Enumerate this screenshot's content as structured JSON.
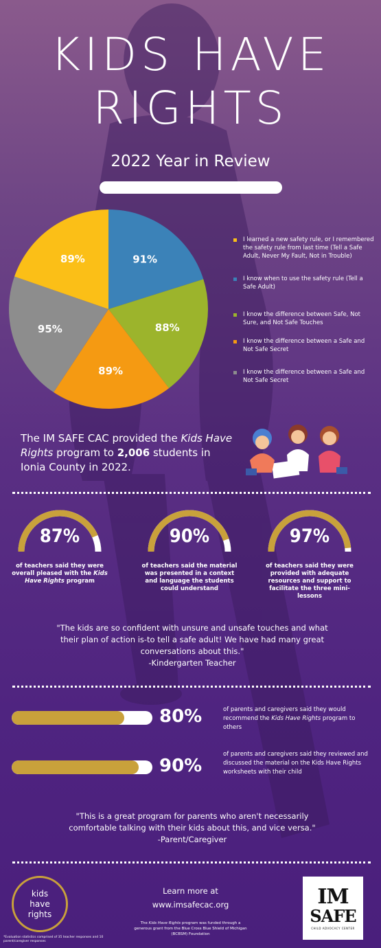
{
  "header": {
    "title_line1": "KIDS HAVE",
    "title_line2": "RIGHTS",
    "subtitle": "2022 Year in Review"
  },
  "pie": {
    "slices": [
      {
        "label": "91%",
        "value": 91,
        "color": "#3b82b8"
      },
      {
        "label": "88%",
        "value": 88,
        "color": "#9cb42c"
      },
      {
        "label": "89%",
        "value": 89,
        "color": "#f59a12"
      },
      {
        "label": "95%",
        "value": 95,
        "color": "#8d8d8d"
      },
      {
        "label": "89%",
        "value": 89,
        "color": "#fbbf17"
      }
    ]
  },
  "legend": [
    {
      "text": "I learned a new safety rule, or I remembered the safety rule from last time (Tell a Safe Adult, Never My Fault, Not in Trouble)",
      "color": "#fbbf17"
    },
    {
      "text": "I know when to use the safety rule (Tell a Safe Adult)",
      "color": "#3b82b8"
    },
    {
      "text": "I know the difference between Safe, Not Sure, and Not Safe Touches",
      "color": "#9cb42c"
    },
    {
      "text": "I know the difference between a Safe and Not Safe Secret",
      "color": "#f59a12"
    },
    {
      "text": "I know the difference between a Safe and Not Safe Secret",
      "color": "#8d8d8d"
    }
  ],
  "intro": {
    "part1": "The IM SAFE CAC provided the ",
    "program": "Kids Have Rights",
    "part2": " program to ",
    "count": "2,006",
    "part3": " students in Ionia County in 2022."
  },
  "teacher_stats": [
    {
      "value": "87%",
      "fraction": 0.87,
      "text_before": "of teachers said they were overall pleased with the ",
      "text_em": "Kids Have Rights",
      "text_after": " program"
    },
    {
      "value": "90%",
      "fraction": 0.9,
      "text_before": "of teachers said the material was presented in a context and language the students could understand",
      "text_em": "",
      "text_after": ""
    },
    {
      "value": "97%",
      "fraction": 0.97,
      "text_before": "of teachers said they were provided with adequate resources and support to facilitate the three mini-lessons",
      "text_em": "",
      "text_after": ""
    }
  ],
  "quote1": {
    "text": "\"The kids are so confident with unsure and unsafe touches and what their plan of action is-to tell a safe adult! We have had many great conversations about this.\"",
    "attribution": "-Kindergarten Teacher"
  },
  "parent_stats": [
    {
      "value": "80%",
      "fraction": 0.8,
      "text_before": "of parents and caregivers said they would recommend the ",
      "text_em": "Kids Have Rights",
      "text_after": " program to others"
    },
    {
      "value": "90%",
      "fraction": 0.9,
      "text_before": "of parents and caregivers said they reviewed and discussed the material on the Kids Have Rights worksheets with their child",
      "text_em": "",
      "text_after": ""
    }
  ],
  "quote2": {
    "text": "\"This is a great program for parents who aren't necessarily comfortable talking with their kids about this, and vice versa.\"",
    "attribution": "-Parent/Caregiver"
  },
  "footer": {
    "logo_line1": "kids",
    "logo_line2": "have",
    "logo_line3": "rights",
    "learn_line1": "Learn more at",
    "learn_url": "www.imsafecac.org",
    "funding_before": "The ",
    "funding_em": "Kids Have Rights",
    "funding_after": " program was funded through a generous grant from the Blue Cross Blue Shield of Michigan (BCBSM) Foundation",
    "footnote": "*Evaluation statistics comprised of 35 teacher responses and 10 parent/caregiver responses",
    "safe_logo_top": "IM",
    "safe_logo_bottom": "SAFE",
    "safe_logo_tag": "CHILD ADVOCACY CENTER"
  },
  "colors": {
    "gold": "#c9a13b",
    "background_top": "#8a5a8c",
    "background_bottom": "#4a1f7c"
  }
}
